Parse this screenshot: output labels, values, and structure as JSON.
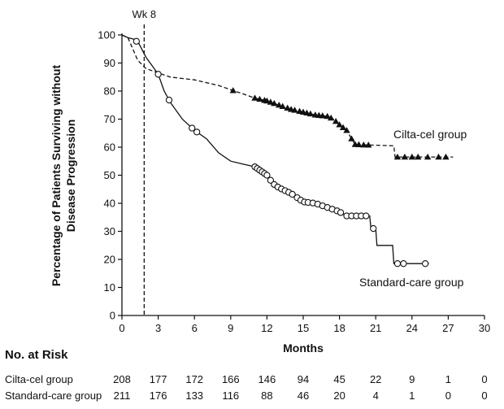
{
  "chart_data": {
    "type": "line",
    "subtype": "kaplan-meier",
    "xlabel": "Months",
    "ylabel_lines": [
      "Percentage of Patients Surviving without",
      "Disease Progression"
    ],
    "xlim": [
      0,
      30
    ],
    "ylim": [
      0,
      100
    ],
    "xticks": [
      0,
      3,
      6,
      9,
      12,
      15,
      18,
      21,
      24,
      27,
      30
    ],
    "yticks": [
      0,
      10,
      20,
      30,
      40,
      50,
      60,
      70,
      80,
      90,
      100
    ],
    "grid": false,
    "reference_line": {
      "x": 1.84,
      "label": "Wk 8",
      "style": "dashed"
    },
    "series": [
      {
        "name": "Cilta-cel group",
        "style": "dashed",
        "marker": "triangle",
        "points": [
          [
            0,
            100
          ],
          [
            0.5,
            99
          ],
          [
            1.0,
            94
          ],
          [
            1.3,
            91
          ],
          [
            2,
            88
          ],
          [
            3,
            86.5
          ],
          [
            4,
            85
          ],
          [
            5,
            84.5
          ],
          [
            6,
            84
          ],
          [
            7,
            83
          ],
          [
            8,
            82
          ],
          [
            9,
            80.5
          ],
          [
            10,
            79
          ],
          [
            11,
            77.5
          ],
          [
            12,
            76.5
          ],
          [
            13,
            75
          ],
          [
            14,
            73.5
          ],
          [
            15,
            72.5
          ],
          [
            16,
            71.5
          ],
          [
            17,
            71
          ],
          [
            17.5,
            70
          ],
          [
            18,
            68
          ],
          [
            18.6,
            66
          ],
          [
            19,
            63
          ],
          [
            19.3,
            61
          ],
          [
            20,
            60.8
          ],
          [
            21,
            60.7
          ],
          [
            22.5,
            60.5
          ],
          [
            22.6,
            56.5
          ],
          [
            27.4,
            56.5
          ]
        ],
        "censor_marks": [
          9.2,
          11,
          11.4,
          11.8,
          12,
          12.3,
          12.6,
          13,
          13.3,
          13.7,
          14,
          14.3,
          14.7,
          15,
          15.3,
          15.6,
          16,
          16.3,
          16.6,
          17,
          17.3,
          17.7,
          18,
          18.3,
          18.6,
          19,
          19.3,
          19.6,
          20,
          20.4,
          22.8,
          23.4,
          24,
          24.5,
          25.3,
          26.2,
          26.8
        ]
      },
      {
        "name": "Standard-care group",
        "style": "solid",
        "marker": "circle",
        "points": [
          [
            0,
            100
          ],
          [
            0.5,
            99
          ],
          [
            1.0,
            98.5
          ],
          [
            1.4,
            97
          ],
          [
            2,
            92
          ],
          [
            2.5,
            89
          ],
          [
            3,
            86
          ],
          [
            3.5,
            80
          ],
          [
            4,
            76
          ],
          [
            5,
            70
          ],
          [
            6,
            66
          ],
          [
            7,
            63
          ],
          [
            8,
            58
          ],
          [
            9,
            55
          ],
          [
            10,
            54
          ],
          [
            11,
            53
          ],
          [
            11.5,
            51.5
          ],
          [
            12,
            50
          ],
          [
            12.5,
            47
          ],
          [
            13,
            45.5
          ],
          [
            14,
            43.5
          ],
          [
            15,
            40.5
          ],
          [
            16,
            40
          ],
          [
            17,
            38.5
          ],
          [
            18,
            37
          ],
          [
            18.5,
            35.5
          ],
          [
            20.5,
            35.5
          ],
          [
            20.6,
            31
          ],
          [
            21,
            31
          ],
          [
            21.1,
            25
          ],
          [
            22.4,
            25
          ],
          [
            22.5,
            18.5
          ],
          [
            25.4,
            18.5
          ]
        ],
        "censor_marks": [
          1.2,
          3.0,
          3.9,
          5.8,
          6.2,
          11.0,
          11.2,
          11.4,
          11.6,
          11.8,
          12.0,
          12.3,
          12.6,
          12.9,
          13.2,
          13.5,
          13.8,
          14.1,
          14.5,
          14.8,
          15.1,
          15.4,
          15.8,
          16.2,
          16.6,
          17.0,
          17.4,
          17.8,
          18.1,
          18.6,
          19.0,
          19.4,
          19.8,
          20.2,
          20.8,
          22.8,
          23.3,
          25.1
        ]
      }
    ],
    "series_labels": [
      "Cilta-cel group",
      "Standard-care group"
    ]
  },
  "risk_table": {
    "title": "No. at Risk",
    "rows": [
      {
        "name": "Cilta-cel group",
        "values": [
          "208",
          "177",
          "172",
          "166",
          "146",
          "94",
          "45",
          "22",
          "9",
          "1",
          "0"
        ]
      },
      {
        "name": "Standard-care group",
        "values": [
          "211",
          "176",
          "133",
          "116",
          "88",
          "46",
          "20",
          "4",
          "1",
          "0",
          "0"
        ]
      }
    ]
  }
}
